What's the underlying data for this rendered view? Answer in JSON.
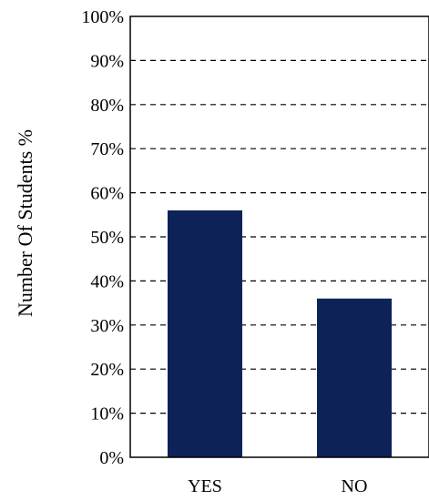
{
  "chart_data": {
    "type": "bar",
    "categories": [
      "YES",
      "NO"
    ],
    "values": [
      56,
      36
    ],
    "unit": "%",
    "title": "",
    "xlabel": "",
    "ylabel": "Number Of Students %",
    "ylim": [
      0,
      100
    ],
    "y_ticks": [
      "0%",
      "10%",
      "20%",
      "30%",
      "40%",
      "50%",
      "60%",
      "70%",
      "80%",
      "90%",
      "100%"
    ],
    "grid": "horizontal dashed",
    "legend": "none",
    "bar_color": "#0d2358"
  }
}
